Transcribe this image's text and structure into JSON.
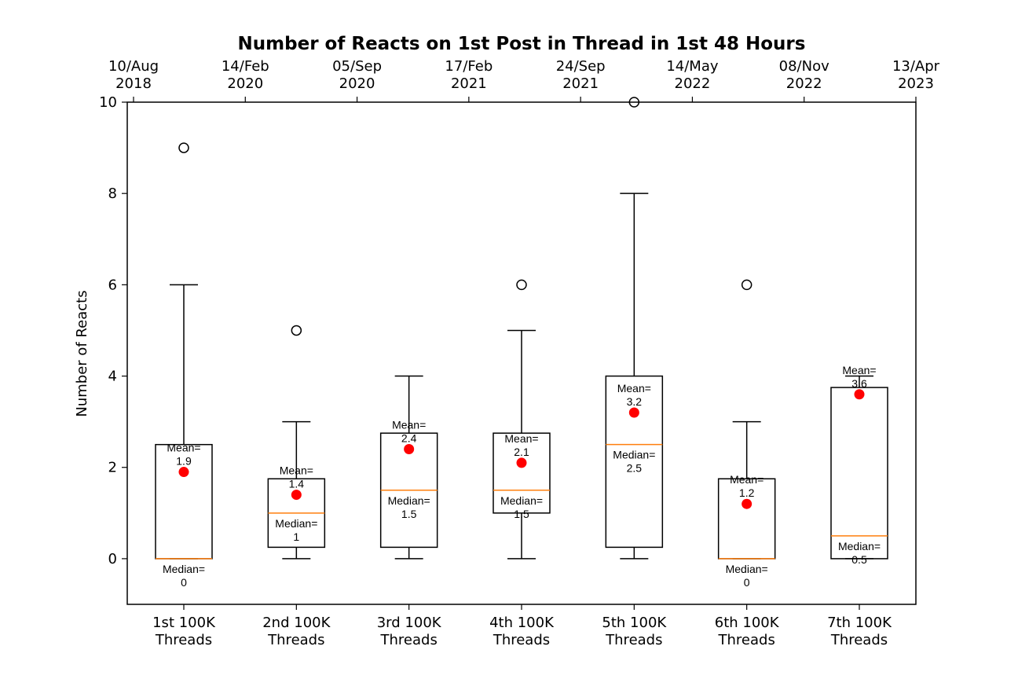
{
  "chart_data": {
    "type": "box",
    "title": "Number of Reacts on 1st Post in Thread in 1st 48 Hours",
    "xlabel": "",
    "ylabel": "Number of Reacts",
    "ylim": [
      -1,
      10
    ],
    "yticks": [
      0,
      2,
      4,
      6,
      8,
      10
    ],
    "grid": false,
    "categories": [
      [
        "1st 100K",
        "Threads"
      ],
      [
        "2nd 100K",
        "Threads"
      ],
      [
        "3rd 100K",
        "Threads"
      ],
      [
        "4th 100K",
        "Threads"
      ],
      [
        "5th 100K",
        "Threads"
      ],
      [
        "6th 100K",
        "Threads"
      ],
      [
        "7th 100K",
        "Threads"
      ]
    ],
    "top_axis_ticks": [
      [
        "10/Aug",
        "2018"
      ],
      [
        "14/Feb",
        "2020"
      ],
      [
        "05/Sep",
        "2020"
      ],
      [
        "17/Feb",
        "2021"
      ],
      [
        "24/Sep",
        "2021"
      ],
      [
        "14/May",
        "2022"
      ],
      [
        "08/Nov",
        "2022"
      ],
      [
        "13/Apr",
        "2023"
      ]
    ],
    "boxes": [
      {
        "whisker_low": 0,
        "q1": 0,
        "median": 0,
        "q3": 2.5,
        "whisker_high": 6,
        "mean": 1.9,
        "outliers": [
          9
        ],
        "mean_label": [
          "Mean=",
          "1.9"
        ],
        "median_label": [
          "Median=",
          "0"
        ]
      },
      {
        "whisker_low": 0,
        "q1": 0.25,
        "median": 1,
        "q3": 1.75,
        "whisker_high": 3,
        "mean": 1.4,
        "outliers": [
          5
        ],
        "mean_label": [
          "Mean=",
          "1.4"
        ],
        "median_label": [
          "Median=",
          "1"
        ]
      },
      {
        "whisker_low": 0,
        "q1": 0.25,
        "median": 1.5,
        "q3": 2.75,
        "whisker_high": 4,
        "mean": 2.4,
        "outliers": [],
        "mean_label": [
          "Mean=",
          "2.4"
        ],
        "median_label": [
          "Median=",
          "1.5"
        ]
      },
      {
        "whisker_low": 0,
        "q1": 1,
        "median": 1.5,
        "q3": 2.75,
        "whisker_high": 5,
        "mean": 2.1,
        "outliers": [
          6
        ],
        "mean_label": [
          "Mean=",
          "2.1"
        ],
        "median_label": [
          "Median=",
          "1.5"
        ]
      },
      {
        "whisker_low": 0,
        "q1": 0.25,
        "median": 2.5,
        "q3": 4,
        "whisker_high": 8,
        "mean": 3.2,
        "outliers": [
          10
        ],
        "mean_label": [
          "Mean=",
          "3.2"
        ],
        "median_label": [
          "Median=",
          "2.5"
        ]
      },
      {
        "whisker_low": 0,
        "q1": 0,
        "median": 0,
        "q3": 1.75,
        "whisker_high": 3,
        "mean": 1.2,
        "outliers": [
          6
        ],
        "mean_label": [
          "Mean=",
          "1.2"
        ],
        "median_label": [
          "Median=",
          "0"
        ]
      },
      {
        "whisker_low": 0,
        "q1": 0,
        "median": 0.5,
        "q3": 3.75,
        "whisker_high": 4,
        "mean": 3.6,
        "outliers": [],
        "mean_label": [
          "Mean=",
          "3.6"
        ],
        "median_label": [
          "Median=",
          "0.5"
        ]
      }
    ],
    "colors": {
      "box": "#000000",
      "median": "#ff7f0e",
      "mean": "#ff0000",
      "outlier": "#000000"
    }
  }
}
